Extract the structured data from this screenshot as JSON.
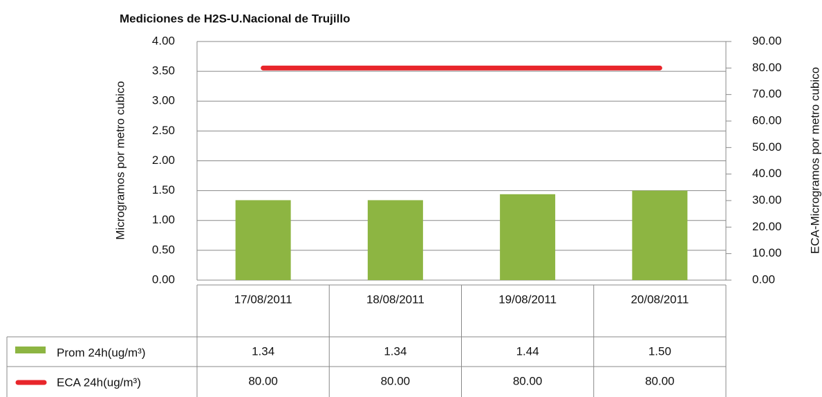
{
  "chart_data": {
    "type": "bar",
    "title": "Mediciones de H2S-U.Nacional de Trujillo",
    "ylabel": "Microgramos por metro cubico",
    "y2label": "ECA-Microgramos por metro cubico",
    "categories": [
      "17/08/2011",
      "18/08/2011",
      "19/08/2011",
      "20/08/2011"
    ],
    "series": [
      {
        "name": "Prom 24h(ug/m³)",
        "type": "bar",
        "color": "#8db542",
        "values": [
          1.34,
          1.34,
          1.44,
          1.5
        ],
        "value_labels": [
          "1.34",
          "1.34",
          "1.44",
          "1.50"
        ]
      },
      {
        "name": "ECA 24h(ug/m³)",
        "type": "line",
        "axis": "y2",
        "color": "#e8262b",
        "values": [
          80,
          80,
          80,
          80
        ],
        "value_labels": [
          "80.00",
          "80.00",
          "80.00",
          "80.00"
        ]
      }
    ],
    "ylim": [
      0,
      4
    ],
    "yticks": [
      {
        "value": 0,
        "label": "0.00"
      },
      {
        "value": 0.5,
        "label": "0.50"
      },
      {
        "value": 1,
        "label": "1.00"
      },
      {
        "value": 1.5,
        "label": "1.50"
      },
      {
        "value": 2,
        "label": "2.00"
      },
      {
        "value": 2.5,
        "label": "2.50"
      },
      {
        "value": 3,
        "label": "3.00"
      },
      {
        "value": 3.5,
        "label": "3.50"
      },
      {
        "value": 4,
        "label": "4.00"
      }
    ],
    "y2lim": [
      0,
      90
    ],
    "y2ticks": [
      {
        "value": 0,
        "label": "0.00"
      },
      {
        "value": 10,
        "label": "10.00"
      },
      {
        "value": 20,
        "label": "20.00"
      },
      {
        "value": 30,
        "label": "30.00"
      },
      {
        "value": 40,
        "label": "40.00"
      },
      {
        "value": 50,
        "label": "50.00"
      },
      {
        "value": 60,
        "label": "60.00"
      },
      {
        "value": 70,
        "label": "70.00"
      },
      {
        "value": 80,
        "label": "80.00"
      },
      {
        "value": 90,
        "label": "90.00"
      }
    ],
    "grid": true
  }
}
